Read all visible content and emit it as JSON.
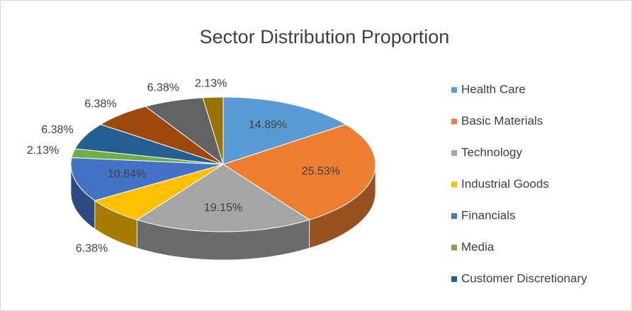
{
  "chart_data": {
    "type": "pie",
    "title": "Sector Distribution Proportion",
    "categories": [
      "Health Care",
      "Basic Materials",
      "Technology",
      "Industrial Goods",
      "Financials",
      "Media",
      "Customer Discretionary",
      null,
      null,
      null
    ],
    "values": [
      14.89,
      25.53,
      19.15,
      6.38,
      10.64,
      2.13,
      6.38,
      6.38,
      6.38,
      2.13
    ],
    "value_labels": [
      "14.89%",
      "25.53%",
      "19.15%",
      "6.38%",
      "10.64%",
      "2.13%",
      "6.38%",
      "6.38%",
      "6.38%",
      "2.13%"
    ],
    "colors": [
      "#5b9bd5",
      "#ed7d31",
      "#a5a5a5",
      "#ffc000",
      "#4472c4",
      "#70ad47",
      "#255e91",
      "#9e480e",
      "#636363",
      "#997300"
    ],
    "legend": "right"
  }
}
